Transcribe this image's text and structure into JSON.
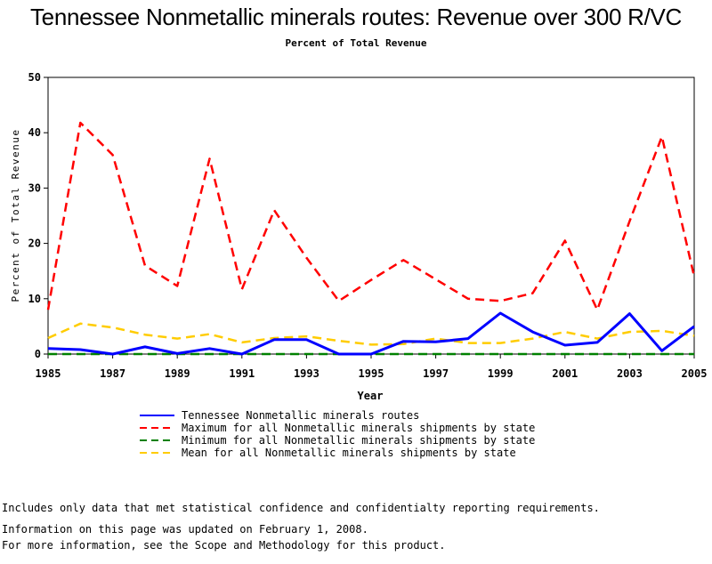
{
  "chart_data": {
    "type": "line",
    "title": "Tennessee Nonmetallic minerals routes: Revenue over 300 R/VC",
    "subtitle": "Percent of Total Revenue",
    "xlabel": "Year",
    "ylabel": "Percent of Total Revenue",
    "xlim": [
      1985,
      2005
    ],
    "ylim": [
      0,
      50
    ],
    "x_ticks": [
      "1985",
      "1987",
      "1989",
      "1991",
      "1993",
      "1995",
      "1997",
      "1999",
      "2001",
      "2003",
      "2005"
    ],
    "y_ticks": [
      "0",
      "10",
      "20",
      "30",
      "40",
      "50"
    ],
    "x": [
      1985,
      1986,
      1987,
      1988,
      1989,
      1990,
      1991,
      1992,
      1993,
      1994,
      1995,
      1996,
      1997,
      1998,
      1999,
      2000,
      2001,
      2002,
      2003,
      2004,
      2005
    ],
    "series": [
      {
        "name": "Tennessee Nonmetallic minerals routes",
        "color": "#0000ff",
        "dash": "solid",
        "values": [
          1.0,
          0.8,
          0.0,
          1.3,
          0.1,
          1.0,
          0.0,
          2.6,
          2.6,
          0.0,
          0.0,
          2.3,
          2.2,
          2.8,
          7.4,
          4.0,
          1.6,
          2.1,
          7.3,
          0.6,
          5.0
        ]
      },
      {
        "name": "Maximum for all Nonmetallic minerals shipments by state",
        "color": "#ff0000",
        "dash": "dash",
        "values": [
          8.0,
          41.8,
          36.0,
          16.0,
          12.3,
          35.3,
          11.7,
          26.0,
          17.4,
          9.6,
          13.4,
          17.0,
          13.5,
          10.0,
          9.6,
          11.0,
          20.5,
          8.0,
          24.0,
          39.3,
          14.0
        ]
      },
      {
        "name": "Minimum for all Nonmetallic minerals shipments by state",
        "color": "#008000",
        "dash": "dash",
        "values": [
          0,
          0,
          0,
          0,
          0,
          0,
          0,
          0,
          0,
          0,
          0,
          0,
          0,
          0,
          0,
          0,
          0,
          0,
          0,
          0,
          0
        ]
      },
      {
        "name": "Mean for all Nonmetallic minerals shipments by state",
        "color": "#ffcc00",
        "dash": "dash",
        "values": [
          2.9,
          5.5,
          4.8,
          3.5,
          2.8,
          3.6,
          2.1,
          2.9,
          3.2,
          2.4,
          1.7,
          1.8,
          2.8,
          2.0,
          2.0,
          2.8,
          4.0,
          2.8,
          4.0,
          4.2,
          3.3
        ]
      }
    ],
    "legend_position": "bottom"
  },
  "notes": [
    "Includes only data that met statistical confidence and confidentialty reporting requirements.",
    "For more information, see the Scope and Methodology for this product."
  ],
  "updated": "Information on this page was updated on February 1, 2008."
}
